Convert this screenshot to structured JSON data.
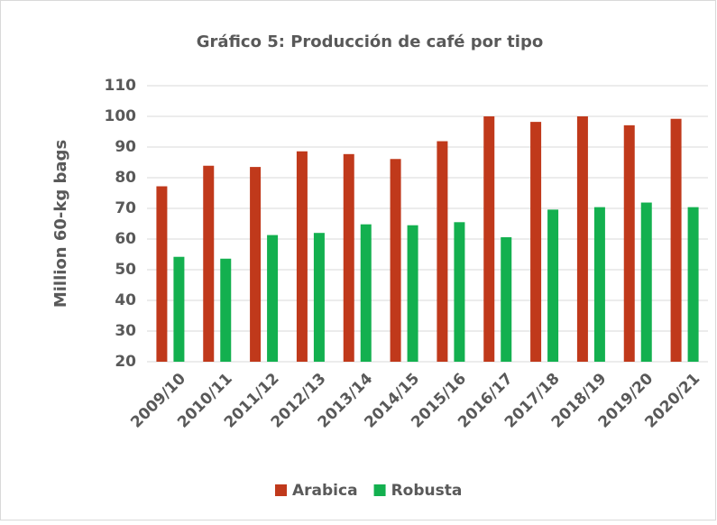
{
  "chart_data": {
    "type": "bar",
    "title": "Gráfico 5: Producción de café por tipo",
    "y_label": "Million 60-kg bags",
    "categories": [
      "2009/10",
      "2010/11",
      "2011/12",
      "2012/13",
      "2013/14",
      "2014/15",
      "2015/16",
      "2016/17",
      "2017/18",
      "2018/19",
      "2019/20",
      "2020/21"
    ],
    "series": [
      {
        "name": "Arabica",
        "color": "#c0391b",
        "values": [
          77.2,
          83.9,
          83.5,
          88.6,
          87.7,
          86.1,
          91.9,
          100,
          98.2,
          100,
          97.1,
          99.2
        ]
      },
      {
        "name": "Robusta",
        "color": "#13b04f",
        "values": [
          54.2,
          53.6,
          61.3,
          62,
          64.8,
          64.5,
          65.5,
          60.6,
          69.6,
          70.4,
          71.9,
          70.4
        ]
      }
    ],
    "ylim": [
      20,
      110
    ],
    "yticks": [
      20,
      30,
      40,
      50,
      60,
      70,
      80,
      90,
      100,
      110
    ],
    "grid": true,
    "legend": "bottom"
  }
}
